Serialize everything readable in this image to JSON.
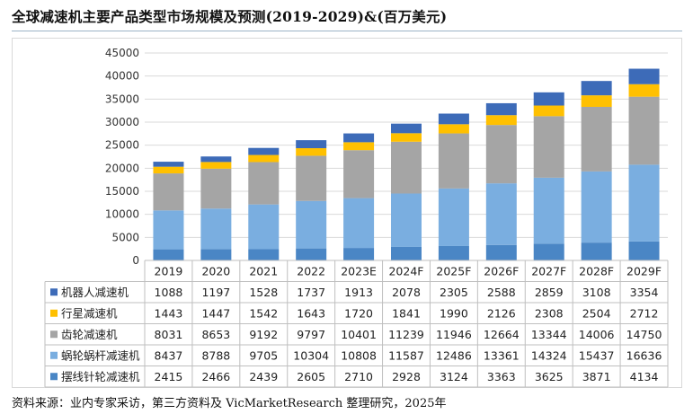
{
  "title": "全球减速机主要产品类型市场规模及预测(2019-2029)&(百万美元)",
  "source": "资料来源：业内专家采访，第三方资料及 VicMarketResearch 整理研究，2025年",
  "chart_data": {
    "type": "bar",
    "stacked": true,
    "title": "全球减速机主要产品类型市场规模及预测(2019-2029)&(百万美元)",
    "unit": "百万美元",
    "categories": [
      "2019",
      "2020",
      "2021",
      "2022",
      "2023E",
      "2024F",
      "2025F",
      "2026F",
      "2027F",
      "2028F",
      "2029F"
    ],
    "ylim": [
      0,
      45000
    ],
    "yticks": [
      "0",
      "5000",
      "10000",
      "15000",
      "20000",
      "25000",
      "30000",
      "35000",
      "40000",
      "45000"
    ],
    "grid": true,
    "legend": "data-table-left",
    "series": [
      {
        "name": "摆线针轮减速机",
        "color": "#4a86c5",
        "values": [
          2415,
          2466,
          2439,
          2605,
          2710,
          2928,
          3124,
          3363,
          3625,
          3871,
          4134
        ]
      },
      {
        "name": "蜗轮蜗杆减速机",
        "color": "#7aaee0",
        "values": [
          8437,
          8788,
          9705,
          10304,
          10808,
          11587,
          12486,
          13361,
          14324,
          15437,
          16636
        ]
      },
      {
        "name": "齿轮减速机",
        "color": "#a5a5a5",
        "values": [
          8031,
          8653,
          9192,
          9797,
          10401,
          11239,
          11946,
          12664,
          13344,
          14006,
          14750
        ]
      },
      {
        "name": "行星减速机",
        "color": "#ffc000",
        "values": [
          1443,
          1447,
          1542,
          1643,
          1720,
          1841,
          1990,
          2126,
          2308,
          2504,
          2712
        ]
      },
      {
        "name": "机器人减速机",
        "color": "#3d6bb8",
        "values": [
          1088,
          1197,
          1528,
          1737,
          1913,
          2078,
          2305,
          2588,
          2859,
          3108,
          3354
        ]
      }
    ]
  }
}
